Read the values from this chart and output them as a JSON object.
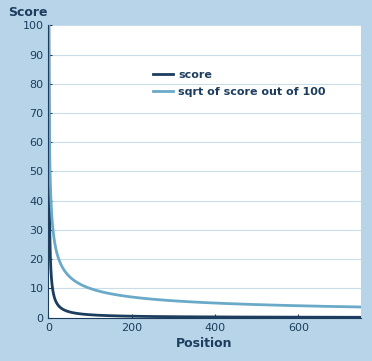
{
  "xlabel": "Position",
  "ylabel": "Score",
  "xlim": [
    0,
    750
  ],
  "ylim": [
    0,
    100
  ],
  "xticks": [
    0,
    200,
    400,
    600
  ],
  "yticks": [
    0,
    10,
    20,
    30,
    40,
    50,
    60,
    70,
    80,
    90,
    100
  ],
  "score_color": "#1c3d5e",
  "sqrt_color": "#6aaac8",
  "background_color": "#b8d4e8",
  "plot_bg_color": "#ffffff",
  "legend_label_score": "score",
  "legend_label_sqrt": "sqrt of score out of 100",
  "score_linewidth": 2.0,
  "sqrt_linewidth": 2.0,
  "x_start": 1,
  "x_end": 750,
  "n_points": 2000,
  "alpha": 1.0,
  "grid_color": "#c8dde8",
  "tick_label_color": "#1c3d5e",
  "label_fontsize": 9,
  "tick_fontsize": 8
}
